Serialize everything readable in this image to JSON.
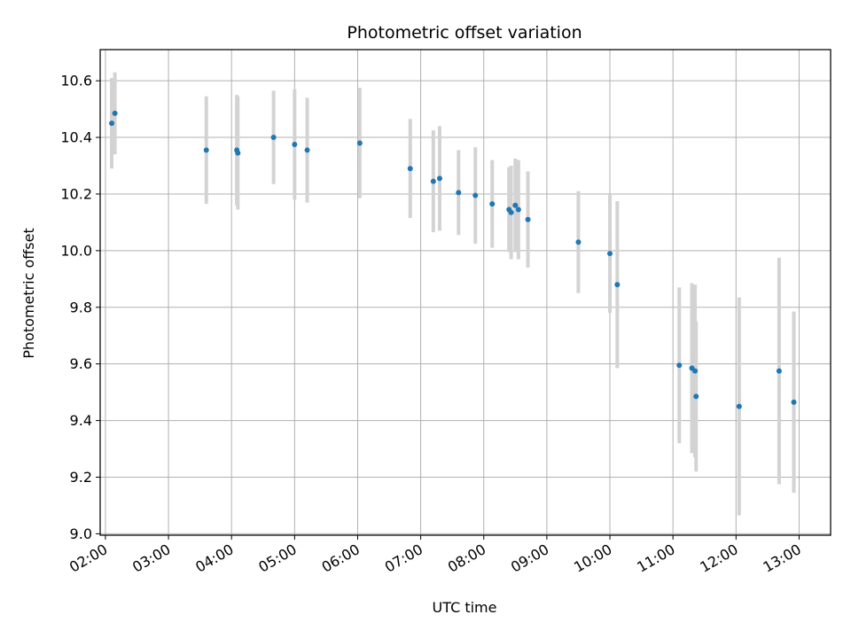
{
  "chart_data": {
    "type": "scatter",
    "title": "Photometric offset variation",
    "xlabel": "UTC time",
    "ylabel": "Photometric offset",
    "x_unit": "hours (UTC)",
    "xlim": [
      "01:55",
      "13:30"
    ],
    "ylim": [
      8.995,
      10.71
    ],
    "grid": true,
    "x_ticks": [
      "02:00",
      "03:00",
      "04:00",
      "05:00",
      "06:00",
      "07:00",
      "08:00",
      "09:00",
      "10:00",
      "11:00",
      "12:00",
      "13:00"
    ],
    "y_ticks": [
      "9.0",
      "9.2",
      "9.4",
      "9.6",
      "9.8",
      "10.0",
      "10.2",
      "10.4",
      "10.6"
    ],
    "point_color": "#1f77b4",
    "errorbar_color": "#d3d3d3",
    "series": [
      {
        "points": [
          {
            "t": "02:06",
            "y": 10.45,
            "err": 0.16
          },
          {
            "t": "02:09",
            "y": 10.485,
            "err": 0.145
          },
          {
            "t": "03:36",
            "y": 10.355,
            "err": 0.19
          },
          {
            "t": "04:05",
            "y": 10.355,
            "err": 0.195
          },
          {
            "t": "04:06",
            "y": 10.345,
            "err": 0.2
          },
          {
            "t": "04:40",
            "y": 10.4,
            "err": 0.165
          },
          {
            "t": "05:00",
            "y": 10.375,
            "err": 0.195
          },
          {
            "t": "05:12",
            "y": 10.355,
            "err": 0.185
          },
          {
            "t": "06:02",
            "y": 10.38,
            "err": 0.195
          },
          {
            "t": "06:50",
            "y": 10.29,
            "err": 0.175
          },
          {
            "t": "07:12",
            "y": 10.245,
            "err": 0.18
          },
          {
            "t": "07:18",
            "y": 10.255,
            "err": 0.185
          },
          {
            "t": "07:36",
            "y": 10.205,
            "err": 0.15
          },
          {
            "t": "07:52",
            "y": 10.195,
            "err": 0.17
          },
          {
            "t": "08:08",
            "y": 10.165,
            "err": 0.155
          },
          {
            "t": "08:24",
            "y": 10.145,
            "err": 0.15
          },
          {
            "t": "08:26",
            "y": 10.135,
            "err": 0.165
          },
          {
            "t": "08:30",
            "y": 10.16,
            "err": 0.165
          },
          {
            "t": "08:33",
            "y": 10.145,
            "err": 0.175
          },
          {
            "t": "08:42",
            "y": 10.11,
            "err": 0.17
          },
          {
            "t": "09:30",
            "y": 10.03,
            "err": 0.18
          },
          {
            "t": "10:00",
            "y": 9.99,
            "err": 0.21
          },
          {
            "t": "10:07",
            "y": 9.88,
            "err": 0.295
          },
          {
            "t": "11:06",
            "y": 9.595,
            "err": 0.275
          },
          {
            "t": "11:18",
            "y": 9.585,
            "err": 0.3
          },
          {
            "t": "11:21",
            "y": 9.575,
            "err": 0.305
          },
          {
            "t": "11:22",
            "y": 9.485,
            "err": 0.265
          },
          {
            "t": "12:03",
            "y": 9.45,
            "err": 0.385
          },
          {
            "t": "12:41",
            "y": 9.575,
            "err": 0.4
          },
          {
            "t": "12:55",
            "y": 9.465,
            "err": 0.32
          }
        ]
      }
    ]
  }
}
